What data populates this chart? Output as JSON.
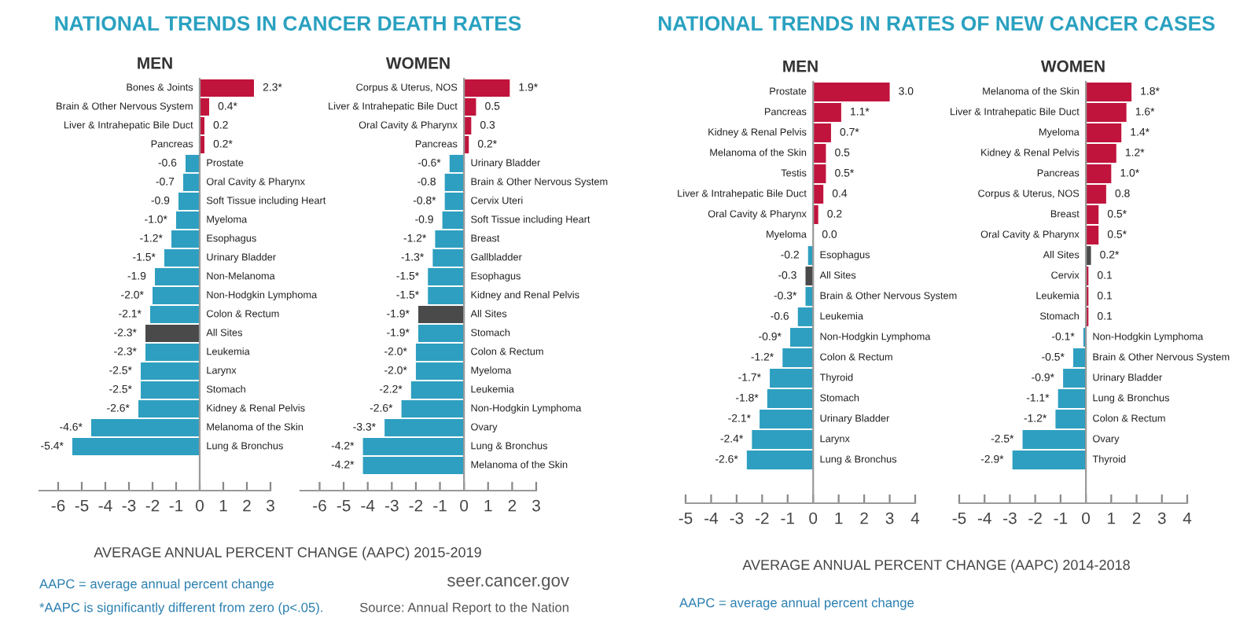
{
  "chart_data": [
    {
      "type": "bar",
      "orientation": "horizontal",
      "title": "NATIONAL TRENDS IN CANCER DEATH RATES",
      "subtitle": "MEN",
      "xlabel": "AVERAGE ANNUAL PERCENT CHANGE (AAPC) 2015-2019",
      "categories": [
        "Bones & Joints",
        "Brain & Other Nervous System",
        "Liver & Intrahepatic Bile Duct",
        "Pancreas",
        "Prostate",
        "Oral Cavity & Pharynx",
        "Soft Tissue including Heart",
        "Myeloma",
        "Esophagus",
        "Urinary Bladder",
        "Non-Melanoma",
        "Non-Hodgkin Lymphoma",
        "Colon & Rectum",
        "All Sites",
        "Leukemia",
        "Larynx",
        "Stomach",
        "Kidney & Renal Pelvis",
        "Melanoma of the Skin",
        "Lung & Bronchus"
      ],
      "values": [
        2.3,
        0.4,
        0.2,
        0.2,
        -0.6,
        -0.7,
        -0.9,
        -1.0,
        -1.2,
        -1.5,
        -1.9,
        -2.0,
        -2.1,
        -2.3,
        -2.3,
        -2.5,
        -2.5,
        -2.6,
        -4.6,
        -5.4
      ],
      "value_labels": [
        "2.3*",
        "0.4*",
        "0.2",
        "0.2*",
        "-0.6",
        "-0.7",
        "-0.9",
        "-1.0*",
        "-1.2*",
        "-1.5*",
        "-1.9",
        "-2.0*",
        "-2.1*",
        "-2.3*",
        "-2.3*",
        "-2.5*",
        "-2.5*",
        "-2.6*",
        "-4.6*",
        "-5.4*"
      ],
      "colors": [
        "#c0143c",
        "#c0143c",
        "#c0143c",
        "#c0143c",
        "#2e9fc0",
        "#2e9fc0",
        "#2e9fc0",
        "#2e9fc0",
        "#2e9fc0",
        "#2e9fc0",
        "#2e9fc0",
        "#2e9fc0",
        "#2e9fc0",
        "#4a4a4a",
        "#2e9fc0",
        "#2e9fc0",
        "#2e9fc0",
        "#2e9fc0",
        "#2e9fc0",
        "#2e9fc0"
      ],
      "xlim": [
        -6.8,
        3
      ],
      "xticks": [
        -6,
        -5,
        -4,
        -3,
        -2,
        -1,
        0,
        1,
        2,
        3
      ],
      "tick_labels": "x",
      "annotations": [
        "AAPC = average annual percent change",
        "*AAPC is significantly different from zero (p<.05).",
        "seer.cancer.gov",
        "Source: Annual Report to the Nation"
      ]
    },
    {
      "type": "bar",
      "orientation": "horizontal",
      "subtitle": "WOMEN",
      "categories": [
        "Corpus & Uterus, NOS",
        "Liver & Intrahepatic Bile Duct",
        "Oral Cavity & Pharynx",
        "Pancreas",
        "Urinary Bladder",
        "Brain & Other Nervous System",
        "Cervix Uteri",
        "Soft Tissue including Heart",
        "Breast",
        "Gallbladder",
        "Esophagus",
        "Kidney and Renal Pelvis",
        "All Sites",
        "Stomach",
        "Colon & Rectum",
        "Myeloma",
        "Leukemia",
        "Non-Hodgkin Lymphoma",
        "Ovary",
        "Lung & Bronchus",
        "Melanoma of the Skin"
      ],
      "values": [
        1.9,
        0.5,
        0.3,
        0.2,
        -0.6,
        -0.8,
        -0.8,
        -0.9,
        -1.2,
        -1.3,
        -1.5,
        -1.5,
        -1.9,
        -1.9,
        -2.0,
        -2.0,
        -2.2,
        -2.6,
        -3.3,
        -4.2,
        -4.2
      ],
      "value_labels": [
        "1.9*",
        "0.5",
        "0.3",
        "0.2*",
        "-0.6*",
        "-0.8",
        "-0.8*",
        "-0.9",
        "-1.2*",
        "-1.3*",
        "-1.5*",
        "-1.5*",
        "-1.9*",
        "-1.9*",
        "-2.0*",
        "-2.0*",
        "-2.2*",
        "-2.6*",
        "-3.3*",
        "-4.2*",
        "-4.2*"
      ],
      "colors": [
        "#c0143c",
        "#c0143c",
        "#c0143c",
        "#c0143c",
        "#2e9fc0",
        "#2e9fc0",
        "#2e9fc0",
        "#2e9fc0",
        "#2e9fc0",
        "#2e9fc0",
        "#2e9fc0",
        "#2e9fc0",
        "#4a4a4a",
        "#2e9fc0",
        "#2e9fc0",
        "#2e9fc0",
        "#2e9fc0",
        "#2e9fc0",
        "#2e9fc0",
        "#2e9fc0",
        "#2e9fc0"
      ],
      "xlim": [
        -6.8,
        3
      ],
      "xticks": [
        -6,
        -5,
        -4,
        -3,
        -2,
        -1,
        0,
        1,
        2,
        3
      ],
      "tick_labels": "x"
    },
    {
      "type": "bar",
      "orientation": "horizontal",
      "title": "NATIONAL TRENDS IN RATES OF NEW CANCER CASES",
      "subtitle": "MEN",
      "xlabel": "AVERAGE ANNUAL PERCENT CHANGE (AAPC) 2014-2018",
      "categories": [
        "Prostate",
        "Pancreas",
        "Kidney & Renal Pelvis",
        "Melanoma of the Skin",
        "Testis",
        "Liver & Intrahepatic Bile Duct",
        "Oral Cavity & Pharynx",
        "Myeloma",
        "Esophagus",
        "All Sites",
        "Brain & Other Nervous System",
        "Leukemia",
        "Non-Hodgkin Lymphoma",
        "Colon & Rectum",
        "Thyroid",
        "Stomach",
        "Urinary Bladder",
        "Larynx",
        "Lung & Bronchus"
      ],
      "values": [
        3.0,
        1.1,
        0.7,
        0.5,
        0.5,
        0.4,
        0.2,
        0.0,
        -0.2,
        -0.3,
        -0.3,
        -0.6,
        -0.9,
        -1.2,
        -1.7,
        -1.8,
        -2.1,
        -2.4,
        -2.6
      ],
      "value_labels": [
        "3.0",
        "1.1*",
        "0.7*",
        "0.5",
        "0.5*",
        "0.4",
        "0.2",
        "0.0",
        "-0.2",
        "-0.3",
        "-0.3*",
        "-0.6",
        "-0.9*",
        "-1.2*",
        "-1.7*",
        "-1.8*",
        "-2.1*",
        "-2.4*",
        "-2.6*"
      ],
      "colors": [
        "#c0143c",
        "#c0143c",
        "#c0143c",
        "#c0143c",
        "#c0143c",
        "#c0143c",
        "#c0143c",
        "#c0143c",
        "#2e9fc0",
        "#4a4a4a",
        "#2e9fc0",
        "#2e9fc0",
        "#2e9fc0",
        "#2e9fc0",
        "#2e9fc0",
        "#2e9fc0",
        "#2e9fc0",
        "#2e9fc0",
        "#2e9fc0"
      ],
      "xlim": [
        -5,
        4
      ],
      "xticks": [
        -5,
        -4,
        -3,
        -2,
        -1,
        0,
        1,
        2,
        3,
        4
      ],
      "tick_labels": "x",
      "annotations": [
        "AAPC = average annual percent change"
      ]
    },
    {
      "type": "bar",
      "orientation": "horizontal",
      "subtitle": "WOMEN",
      "categories": [
        "Melanoma of the Skin",
        "Liver & Intrahepatic Bile Duct",
        "Myeloma",
        "Kidney & Renal Pelvis",
        "Pancreas",
        "Corpus & Uterus, NOS",
        "Breast",
        "Oral Cavity & Pharynx",
        "All Sites",
        "Cervix",
        "Leukemia",
        "Stomach",
        "Non-Hodgkin Lymphoma",
        "Brain & Other Nervous System",
        "Urinary Bladder",
        "Lung & Bronchus",
        "Colon & Rectum",
        "Ovary",
        "Thyroid"
      ],
      "values": [
        1.8,
        1.6,
        1.4,
        1.2,
        1.0,
        0.8,
        0.5,
        0.5,
        0.2,
        0.1,
        0.1,
        0.1,
        -0.1,
        -0.5,
        -0.9,
        -1.1,
        -1.2,
        -2.5,
        -2.9
      ],
      "value_labels": [
        "1.8*",
        "1.6*",
        "1.4*",
        "1.2*",
        "1.0*",
        "0.8",
        "0.5*",
        "0.5*",
        "0.2*",
        "0.1",
        "0.1",
        "0.1",
        "-0.1*",
        "-0.5*",
        "-0.9*",
        "-1.1*",
        "-1.2*",
        "-2.5*",
        "-2.9*"
      ],
      "colors": [
        "#c0143c",
        "#c0143c",
        "#c0143c",
        "#c0143c",
        "#c0143c",
        "#c0143c",
        "#c0143c",
        "#c0143c",
        "#4a4a4a",
        "#c0143c",
        "#c0143c",
        "#c0143c",
        "#2e9fc0",
        "#2e9fc0",
        "#2e9fc0",
        "#2e9fc0",
        "#2e9fc0",
        "#2e9fc0",
        "#2e9fc0"
      ],
      "xlim": [
        -5,
        4
      ],
      "xticks": [
        -5,
        -4,
        -3,
        -2,
        -1,
        0,
        1,
        2,
        3,
        4
      ],
      "tick_labels": "x"
    }
  ]
}
